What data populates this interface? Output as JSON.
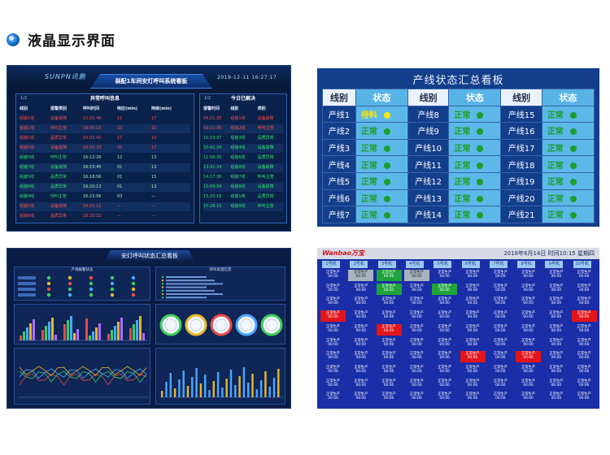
{
  "header": {
    "title": "液晶显示界面"
  },
  "panel1": {
    "brand": "SUNPN讯鹏",
    "title": "装配1车间安灯呼叫系统看板",
    "datetime": "2019-12-11  16:27:17",
    "left_box": {
      "page": "1/2",
      "title": "异常呼叫信息",
      "columns": [
        "线别",
        "报警类别",
        "呼叫时间",
        "响应(min)",
        "持续(min)"
      ],
      "rows": [
        [
          "组装1线",
          "设备故障",
          "15:25:46",
          "11",
          "17"
        ],
        [
          "组装1线",
          "呼叫主管",
          "16:00:13",
          "10",
          "11"
        ],
        [
          "组装1线",
          "品质异常",
          "16:01:42",
          "17",
          "10"
        ],
        [
          "组装5线",
          "设备故障",
          "16:05:33",
          "05",
          "17"
        ],
        [
          "组装5线",
          "呼叫主管",
          "16:12:26",
          "12",
          "13"
        ],
        [
          "组装7线",
          "设备故障",
          "16:15:45",
          "01",
          "13"
        ],
        [
          "组装5线",
          "品质异常",
          "16:18:56",
          "01",
          "15"
        ],
        [
          "组装6线",
          "品质异常",
          "16:20:13",
          "01",
          "13"
        ],
        [
          "组装4线",
          "呼叫主管",
          "16:22:56",
          "03",
          "—"
        ],
        [
          "组装5线",
          "设备故障",
          "16:25:12",
          "—",
          "—"
        ],
        [
          "组装6线",
          "品质异常",
          "16:25:32",
          "—",
          "—"
        ]
      ]
    },
    "right_box": {
      "page": "1/2",
      "title": "今日已解决",
      "columns": [
        "报警时间",
        "线别",
        "类别"
      ],
      "rows": [
        [
          "09:21:35",
          "组装1线",
          "设备故障"
        ],
        [
          "09:21:35",
          "组装2线",
          "呼叫主管"
        ],
        [
          "10:33:37",
          "组装3线",
          "品质异常"
        ],
        [
          "10:41:34",
          "组装4线",
          "设备故障"
        ],
        [
          "11:06:35",
          "组装6线",
          "品质异常"
        ],
        [
          "13:41:34",
          "组装8线",
          "设备故障"
        ],
        [
          "14:17:36",
          "组装7线",
          "呼叫主管"
        ],
        [
          "15:09:39",
          "组装8线",
          "设备故障"
        ],
        [
          "15:20:18",
          "组装1线",
          "品质异常"
        ],
        [
          "15:28:10",
          "组装9线",
          "呼叫主管"
        ]
      ]
    }
  },
  "panel2": {
    "title": "产线状态汇总看板",
    "head_line": "线别",
    "head_status": "状态",
    "rows": [
      [
        {
          "line": "产线1",
          "status": "待料",
          "color": "#ffe600"
        },
        {
          "line": "产线8",
          "status": "正常",
          "color": "#1c9e2c"
        },
        {
          "line": "产线15",
          "status": "正常",
          "color": "#1c9e2c"
        }
      ],
      [
        {
          "line": "产线2",
          "status": "正常",
          "color": "#1c9e2c"
        },
        {
          "line": "产线9",
          "status": "正常",
          "color": "#1c9e2c"
        },
        {
          "line": "产线16",
          "status": "正常",
          "color": "#1c9e2c"
        }
      ],
      [
        {
          "line": "产线3",
          "status": "正常",
          "color": "#1c9e2c"
        },
        {
          "line": "产线10",
          "status": "正常",
          "color": "#1c9e2c"
        },
        {
          "line": "产线17",
          "status": "正常",
          "color": "#1c9e2c"
        }
      ],
      [
        {
          "line": "产线4",
          "status": "正常",
          "color": "#1c9e2c"
        },
        {
          "line": "产线11",
          "status": "正常",
          "color": "#1c9e2c"
        },
        {
          "line": "产线18",
          "status": "正常",
          "color": "#1c9e2c"
        }
      ],
      [
        {
          "line": "产线5",
          "status": "正常",
          "color": "#1c9e2c"
        },
        {
          "line": "产线12",
          "status": "正常",
          "color": "#1c9e2c"
        },
        {
          "line": "产线19",
          "status": "正常",
          "color": "#1c9e2c"
        }
      ],
      [
        {
          "line": "产线6",
          "status": "正常",
          "color": "#1c9e2c"
        },
        {
          "line": "产线13",
          "status": "正常",
          "color": "#1c9e2c"
        },
        {
          "line": "产线20",
          "status": "正常",
          "color": "#1c9e2c"
        }
      ],
      [
        {
          "line": "产线7",
          "status": "正常",
          "color": "#1c9e2c"
        },
        {
          "line": "产线14",
          "status": "正常",
          "color": "#1c9e2c"
        },
        {
          "line": "产线21",
          "status": "正常",
          "color": "#1c9e2c"
        }
      ]
    ]
  },
  "panel3": {
    "title": "安灯呼叫状态汇总看板",
    "sub_left": "产线报警状态",
    "sub_right": "呼叫处理信息"
  },
  "panel4": {
    "brand": "Wanbao万宝",
    "datetime": "2018年6月14日  时间10:15  星期四",
    "machines": [
      "1号机",
      "2号机",
      "3号机",
      "4号机",
      "5号机",
      "6号机",
      "7号机",
      "8号机",
      "9号机",
      "10号机"
    ],
    "cell_label": "正常生产",
    "cell_time": "00:00"
  },
  "colors": {
    "p1_bg": "#081a3a",
    "p2_bg": "#133e8b",
    "p2_status": "#5cb8e8",
    "p3_bg": "#0b1c44",
    "p4_bg": "#1a2ea8",
    "alarm_red": "#e3141a",
    "ok_green": "#1c9e2c"
  }
}
